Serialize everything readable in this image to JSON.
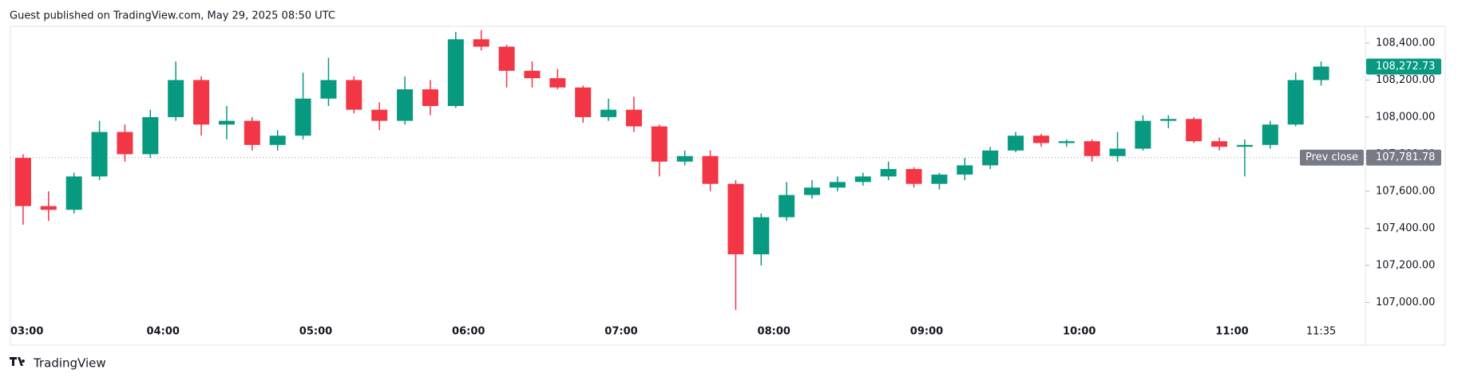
{
  "chart_data": {
    "type": "candlestick",
    "title": "Guest published on TradingView.com, May 29, 2025 08:50 UTC",
    "brand": "TradingView",
    "x": [
      "03:00",
      "03:10",
      "03:20",
      "03:30",
      "03:40",
      "03:50",
      "04:00",
      "04:10",
      "04:20",
      "04:30",
      "04:40",
      "04:50",
      "05:00",
      "05:10",
      "05:20",
      "05:30",
      "05:40",
      "05:50",
      "06:00",
      "06:10",
      "06:20",
      "06:30",
      "06:40",
      "06:50",
      "07:00",
      "07:10",
      "07:20",
      "07:30",
      "07:40",
      "07:50",
      "08:00",
      "08:10",
      "08:20",
      "08:30",
      "08:40",
      "08:50",
      "09:00",
      "09:10",
      "09:20",
      "09:30",
      "09:40",
      "09:50",
      "10:00",
      "10:10",
      "10:20",
      "10:30",
      "10:40",
      "10:50",
      "11:00",
      "11:10",
      "11:20",
      "11:30"
    ],
    "open": [
      107780,
      107520,
      107500,
      107680,
      107920,
      107800,
      108000,
      108200,
      107960,
      107980,
      107850,
      107900,
      108100,
      108200,
      108040,
      107980,
      108150,
      108060,
      108420,
      108380,
      108250,
      108210,
      108160,
      108000,
      108040,
      107950,
      107760,
      107790,
      107640,
      107260,
      107460,
      107580,
      107620,
      107650,
      107680,
      107720,
      107640,
      107690,
      107740,
      107820,
      107900,
      107860,
      107870,
      107790,
      107830,
      107980,
      107990,
      107870,
      107840,
      107850,
      107960,
      108200
    ],
    "high": [
      107800,
      107600,
      107700,
      107980,
      107960,
      108040,
      108300,
      108220,
      108060,
      108000,
      107930,
      108240,
      108320,
      108220,
      108080,
      108220,
      108200,
      108460,
      108470,
      108390,
      108300,
      108260,
      108170,
      108100,
      108110,
      107960,
      107820,
      107820,
      107660,
      107480,
      107650,
      107660,
      107680,
      107700,
      107760,
      107730,
      107700,
      107780,
      107840,
      107920,
      107910,
      107880,
      107880,
      107920,
      108010,
      108010,
      108000,
      107890,
      107880,
      107980,
      108240,
      108300
    ],
    "low": [
      107420,
      107440,
      107480,
      107660,
      107760,
      107780,
      107980,
      107900,
      107880,
      107820,
      107820,
      107880,
      108060,
      108020,
      107930,
      107960,
      108010,
      108050,
      108360,
      108160,
      108160,
      108150,
      107970,
      107980,
      107920,
      107680,
      107740,
      107600,
      106960,
      107200,
      107440,
      107560,
      107600,
      107630,
      107660,
      107620,
      107610,
      107660,
      107720,
      107810,
      107840,
      107840,
      107760,
      107760,
      107820,
      107940,
      107860,
      107820,
      107680,
      107830,
      107950,
      108170
    ],
    "close": [
      107520,
      107500,
      107680,
      107920,
      107800,
      108000,
      108200,
      107960,
      107980,
      107850,
      107900,
      108100,
      108200,
      108040,
      107980,
      108150,
      108060,
      108420,
      108380,
      108250,
      108210,
      108160,
      108000,
      108040,
      107950,
      107760,
      107790,
      107640,
      107260,
      107460,
      107580,
      107620,
      107650,
      107680,
      107720,
      107640,
      107690,
      107740,
      107820,
      107900,
      107860,
      107870,
      107790,
      107830,
      107980,
      107990,
      107870,
      107840,
      107850,
      107960,
      108200,
      108272.73
    ],
    "up_color": "#089981",
    "down_color": "#f23645",
    "ylim": [
      106770,
      108490
    ],
    "yticks": [
      {
        "value": 107000,
        "label": "107,000.00"
      },
      {
        "value": 107200,
        "label": "107,200.00"
      },
      {
        "value": 107400,
        "label": "107,400.00"
      },
      {
        "value": 107600,
        "label": "107,600.00"
      },
      {
        "value": 107800,
        "label": "107,800.00"
      },
      {
        "value": 108000,
        "label": "108,000.00"
      },
      {
        "value": 108200,
        "label": "108,200.00"
      },
      {
        "value": 108400,
        "label": "108,400.00"
      }
    ],
    "xticks": [
      "03:00",
      "04:00",
      "05:00",
      "06:00",
      "07:00",
      "08:00",
      "09:00",
      "10:00",
      "11:00",
      "11:35"
    ],
    "last_price": {
      "value": 108272.73,
      "label": "108,272.73",
      "color": "#089981"
    },
    "prev_close": {
      "value": 107781.78,
      "label": "107,781.78",
      "tag": "Prev close",
      "color": "#787b86"
    }
  }
}
